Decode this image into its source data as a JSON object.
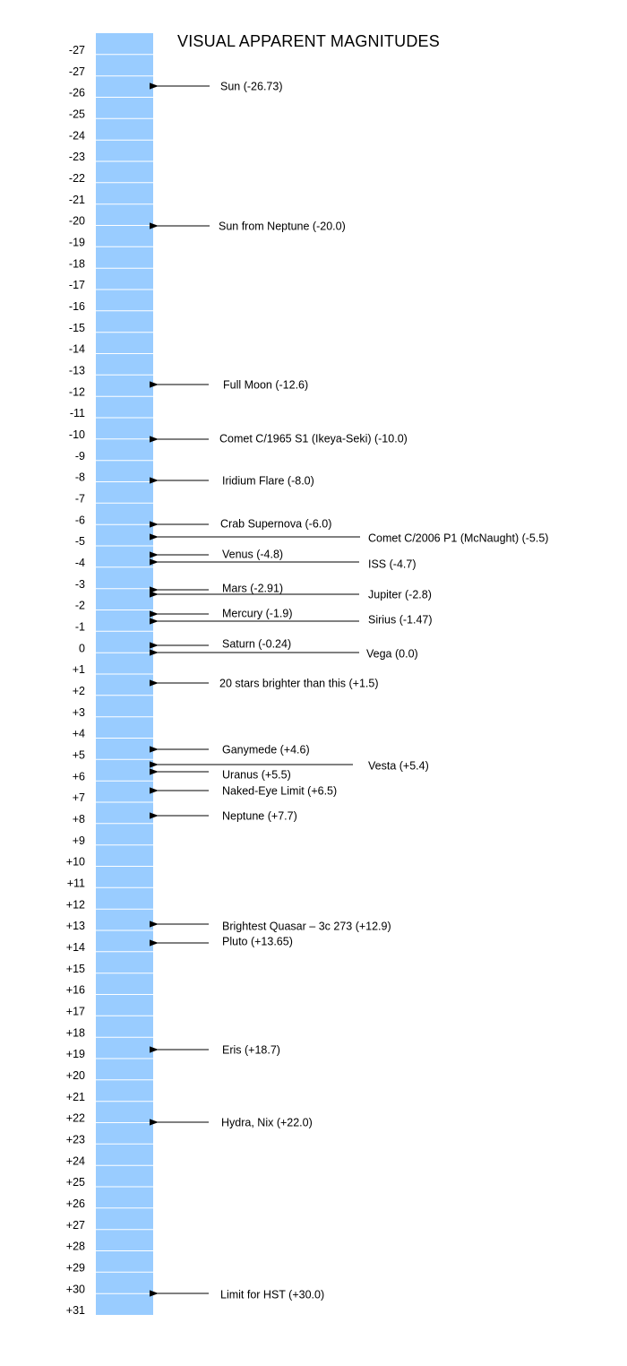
{
  "title": "VISUAL APPARENT MAGNITUDES",
  "colors": {
    "bar": "#99ccff",
    "divider": "#ffffff",
    "text": "#000000",
    "line": "#000000"
  },
  "tick_labels": [
    "-27",
    "-27",
    "-26",
    "-25",
    "-24",
    "-23",
    "-22",
    "-21",
    "-20",
    "-19",
    "-18",
    "-17",
    "-16",
    "-15",
    "-14",
    "-13",
    "-12",
    "-11",
    "-10",
    "-9",
    "-8",
    "-7",
    "-6",
    "-5",
    "-4",
    "-3",
    "-2",
    "-1",
    "0",
    "+1",
    "+2",
    "+3",
    "+4",
    "+5",
    "+6",
    "+7",
    "+8",
    "+9",
    "+10",
    "+11",
    "+12",
    "+13",
    "+14",
    "+15",
    "+16",
    "+17",
    "+18",
    "+19",
    "+20",
    "+21",
    "+22",
    "+23",
    "+24",
    "+25",
    "+26",
    "+27",
    "+28",
    "+29",
    "+30",
    "+31"
  ],
  "objects": [
    {
      "label": "Sun (-26.73)",
      "magnitude": -26.73
    },
    {
      "label": "Sun from Neptune (-20.0)",
      "magnitude": -20.0
    },
    {
      "label": "Full Moon (-12.6)",
      "magnitude": -12.6
    },
    {
      "label": "Comet C/1965 S1 (Ikeya-Seki) (-10.0)",
      "magnitude": -10.0
    },
    {
      "label": "Iridium Flare (-8.0)",
      "magnitude": -8.0
    },
    {
      "label": "Crab Supernova  (-6.0)",
      "magnitude": -6.0
    },
    {
      "label": "Comet C/2006 P1 (McNaught) (-5.5)",
      "magnitude": -5.5
    },
    {
      "label": "Venus (-4.8)",
      "magnitude": -4.8
    },
    {
      "label": "ISS (-4.7)",
      "magnitude": -4.7
    },
    {
      "label": "Mars (-2.91)",
      "magnitude": -2.91
    },
    {
      "label": "Jupiter (-2.8)",
      "magnitude": -2.8
    },
    {
      "label": "Mercury (-1.9)",
      "magnitude": -1.9
    },
    {
      "label": "Sirius (-1.47)",
      "magnitude": -1.47
    },
    {
      "label": "Saturn (-0.24)",
      "magnitude": -0.24
    },
    {
      "label": "Vega (0.0)",
      "magnitude": 0.0
    },
    {
      "label": "20 stars brighter than this (+1.5)",
      "magnitude": 1.5
    },
    {
      "label": "Ganymede (+4.6)",
      "magnitude": 4.6
    },
    {
      "label": "Vesta (+5.4)",
      "magnitude": 5.4
    },
    {
      "label": "Uranus (+5.5)",
      "magnitude": 5.5
    },
    {
      "label": "Naked-Eye Limit (+6.5)",
      "magnitude": 6.5
    },
    {
      "label": "Neptune (+7.7)",
      "magnitude": 7.7
    },
    {
      "label": "Brightest Quasar – 3c 273 (+12.9)",
      "magnitude": 12.9
    },
    {
      "label": "Pluto (+13.65)",
      "magnitude": 13.65
    },
    {
      "label": "Eris (+18.7)",
      "magnitude": 18.7
    },
    {
      "label": "Hydra, Nix (+22.0)",
      "magnitude": 22.0
    },
    {
      "label": "Limit for HST (+30.0)",
      "magnitude": 30.0
    }
  ]
}
